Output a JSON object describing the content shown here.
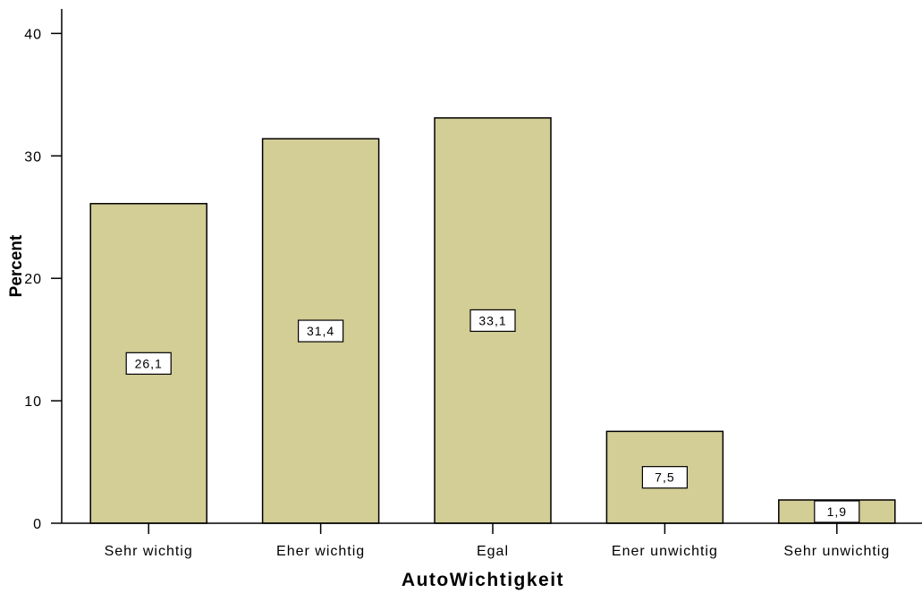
{
  "chart_data": {
    "type": "bar",
    "categories": [
      "Sehr wichtig",
      "Eher wichtig",
      "Egal",
      "Ener unwichtig",
      "Sehr unwichtig"
    ],
    "values": [
      26.1,
      31.4,
      33.1,
      7.5,
      1.9
    ],
    "data_labels": [
      "26,1",
      "31,4",
      "33,1",
      "7,5",
      "1,9"
    ],
    "xlabel": "AutoWichtigkeit",
    "ylabel": "Percent",
    "ylim": [
      0,
      42
    ],
    "yticks": [
      0,
      10,
      20,
      30,
      40
    ],
    "grid": false,
    "bar_color": "#d3cd96",
    "bar_edge_color": "#000000"
  }
}
